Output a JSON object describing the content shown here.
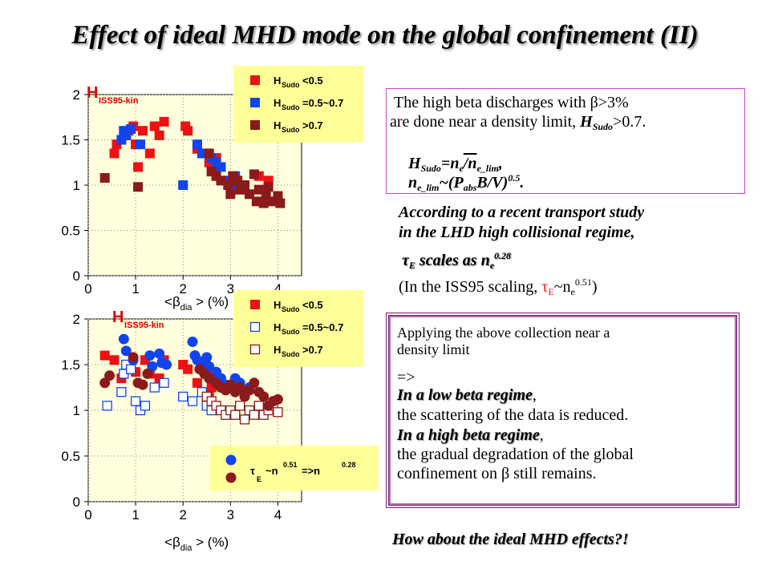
{
  "title": "Effect of ideal MHD mode on the global confinement (II)",
  "chart_data": [
    {
      "type": "scatter",
      "ylabel": "H",
      "ylabel_sub": "ISS95-kin",
      "xlabel_pre": "<",
      "xlabel_symbol": "β",
      "xlabel_sub": "dia",
      "xlabel_post": "> (%)",
      "xlim": [
        0,
        4.5
      ],
      "ylim": [
        0,
        2
      ],
      "xticks": [
        "0",
        "1",
        "2",
        "3",
        "4"
      ],
      "yticks": [
        "0",
        "0.5",
        "1",
        "1.5",
        "2"
      ],
      "legend": [
        {
          "label": "H",
          "sub": "Sudo",
          "cond": "<0.5",
          "color": "#ee1111",
          "marker": "square-filled"
        },
        {
          "label": "H",
          "sub": "Sudo",
          "cond": "=0.5~0.7",
          "color": "#1144ee",
          "marker": "square-filled"
        },
        {
          "label": "H",
          "sub": "Sudo",
          "cond": ">0.7",
          "color": "#8b1a1a",
          "marker": "square-filled"
        }
      ],
      "legend_bg": "#ffff99",
      "series": [
        {
          "name": "H_Sudo<0.5",
          "color": "#ee1111",
          "marker": "square-filled",
          "points": [
            [
              0.55,
              1.35
            ],
            [
              0.6,
              1.45
            ],
            [
              0.8,
              1.55
            ],
            [
              0.85,
              1.6
            ],
            [
              0.95,
              1.65
            ],
            [
              1.0,
              1.45
            ],
            [
              1.05,
              1.2
            ],
            [
              1.15,
              1.6
            ],
            [
              1.3,
              1.35
            ],
            [
              1.4,
              1.65
            ],
            [
              1.5,
              1.55
            ],
            [
              1.6,
              1.7
            ],
            [
              2.05,
              1.65
            ],
            [
              2.1,
              1.6
            ],
            [
              2.3,
              1.4
            ],
            [
              2.5,
              1.35
            ],
            [
              2.55,
              1.25
            ],
            [
              2.6,
              1.2
            ],
            [
              2.7,
              1.3
            ],
            [
              3.6,
              1.1
            ],
            [
              3.8,
              1.05
            ]
          ]
        },
        {
          "name": "H_Sudo=0.5~0.7",
          "color": "#1144ee",
          "marker": "square-filled",
          "points": [
            [
              0.7,
              1.5
            ],
            [
              0.75,
              1.6
            ],
            [
              0.8,
              1.55
            ],
            [
              0.9,
              1.62
            ],
            [
              1.1,
              1.45
            ],
            [
              2.0,
              1.0
            ],
            [
              2.3,
              1.45
            ],
            [
              2.4,
              1.35
            ],
            [
              2.6,
              1.3
            ],
            [
              2.7,
              1.25
            ],
            [
              2.8,
              1.2
            ],
            [
              2.9,
              1.05
            ],
            [
              3.0,
              1.0
            ],
            [
              3.1,
              1.1
            ],
            [
              3.2,
              0.95
            ]
          ]
        },
        {
          "name": "H_Sudo>0.7",
          "color": "#8b1a1a",
          "marker": "square-filled",
          "points": [
            [
              0.35,
              1.08
            ],
            [
              1.05,
              0.98
            ],
            [
              2.55,
              1.35
            ],
            [
              2.6,
              1.15
            ],
            [
              2.7,
              1.1
            ],
            [
              2.8,
              1.05
            ],
            [
              2.95,
              1.0
            ],
            [
              3.0,
              0.9
            ],
            [
              3.05,
              1.1
            ],
            [
              3.15,
              1.05
            ],
            [
              3.2,
              0.95
            ],
            [
              3.3,
              1.0
            ],
            [
              3.4,
              0.9
            ],
            [
              3.5,
              1.12
            ],
            [
              3.55,
              0.82
            ],
            [
              3.6,
              0.95
            ],
            [
              3.7,
              0.8
            ],
            [
              3.75,
              0.88
            ],
            [
              3.8,
              0.98
            ],
            [
              3.9,
              0.82
            ],
            [
              4.0,
              0.88
            ],
            [
              4.05,
              0.8
            ]
          ]
        }
      ]
    },
    {
      "type": "scatter",
      "ylabel": "H",
      "ylabel_sub": "ISS95-kin",
      "xlabel_pre": "<",
      "xlabel_symbol": "β",
      "xlabel_sub": "dia",
      "xlabel_post": "> (%)",
      "xlim": [
        0,
        4.5
      ],
      "ylim": [
        0,
        2
      ],
      "xticks": [
        "0",
        "1",
        "2",
        "3",
        "4"
      ],
      "yticks": [
        "0",
        "0.5",
        "1",
        "1.5",
        "2"
      ],
      "legend": [
        {
          "label": "H",
          "sub": "Sudo",
          "cond": "<0.5",
          "color": "#ee1111",
          "marker": "square-filled"
        },
        {
          "label": "H",
          "sub": "Sudo",
          "cond": "=0.5~0.7",
          "color": "#1144ee",
          "marker": "square-open"
        },
        {
          "label": "H",
          "sub": "Sudo",
          "cond": ">0.7",
          "color": "#8b1a1a",
          "marker": "square-open"
        }
      ],
      "legend_bg": "#ffff99",
      "legend2": {
        "text_pre": "τ",
        "text_sub": "E",
        "text_mid": "~n",
        "sup1": "0.51",
        "text_arrow": "=>n",
        "sup2": "0.28",
        "markers": [
          {
            "color": "#1144ee",
            "marker": "circle-filled"
          },
          {
            "color": "#8b1a1a",
            "marker": "circle-filled"
          }
        ],
        "bg": "#ffff99"
      },
      "series": [
        {
          "name": "H_Sudo<0.5",
          "color": "#ee1111",
          "marker": "square-filled",
          "points": [
            [
              0.35,
              1.6
            ],
            [
              0.55,
              1.55
            ],
            [
              0.7,
              1.35
            ],
            [
              0.8,
              1.45
            ],
            [
              0.9,
              1.5
            ],
            [
              1.0,
              1.42
            ],
            [
              1.2,
              1.55
            ],
            [
              1.3,
              1.4
            ],
            [
              1.5,
              1.35
            ],
            [
              1.6,
              1.55
            ],
            [
              2.0,
              1.5
            ],
            [
              2.1,
              1.45
            ],
            [
              2.3,
              1.3
            ],
            [
              2.5,
              1.4
            ],
            [
              2.55,
              1.2
            ],
            [
              2.6,
              1.25
            ],
            [
              2.65,
              1.35
            ]
          ]
        },
        {
          "name": "H_Sudo=0.5~0.7 (open)",
          "color": "#1144ee",
          "marker": "square-open",
          "points": [
            [
              0.4,
              1.05
            ],
            [
              0.7,
              1.2
            ],
            [
              0.75,
              1.4
            ],
            [
              0.8,
              1.5
            ],
            [
              0.9,
              1.45
            ],
            [
              1.0,
              1.1
            ],
            [
              1.1,
              1.0
            ],
            [
              1.2,
              1.05
            ],
            [
              1.4,
              1.25
            ],
            [
              1.6,
              1.3
            ],
            [
              2.0,
              1.15
            ],
            [
              2.2,
              1.1
            ],
            [
              2.4,
              1.2
            ],
            [
              2.5,
              1.05
            ],
            [
              2.6,
              1.0
            ]
          ]
        },
        {
          "name": "H_Sudo>0.7 (open)",
          "color": "#8b1a1a",
          "marker": "square-open",
          "points": [
            [
              2.5,
              1.15
            ],
            [
              2.6,
              1.1
            ],
            [
              2.7,
              1.05
            ],
            [
              2.8,
              1.0
            ],
            [
              2.9,
              0.95
            ],
            [
              3.0,
              1.0
            ],
            [
              3.1,
              0.95
            ],
            [
              3.2,
              1.05
            ],
            [
              3.3,
              0.9
            ],
            [
              3.4,
              1.0
            ],
            [
              3.5,
              0.95
            ],
            [
              3.6,
              1.05
            ],
            [
              3.7,
              0.95
            ],
            [
              3.8,
              1.0
            ],
            [
              3.9,
              1.05
            ],
            [
              4.0,
              0.98
            ]
          ]
        },
        {
          "name": "τE~n^0.51 (blue)",
          "color": "#1144ee",
          "marker": "circle-filled",
          "points": [
            [
              0.75,
              1.78
            ],
            [
              0.8,
              1.65
            ],
            [
              0.95,
              1.55
            ],
            [
              1.3,
              1.6
            ],
            [
              1.35,
              1.48
            ],
            [
              1.5,
              1.62
            ],
            [
              1.55,
              1.52
            ],
            [
              1.65,
              1.5
            ],
            [
              2.2,
              1.75
            ],
            [
              2.25,
              1.6
            ],
            [
              2.3,
              1.55
            ],
            [
              2.4,
              1.52
            ],
            [
              2.45,
              1.45
            ],
            [
              2.5,
              1.58
            ],
            [
              2.55,
              1.48
            ],
            [
              2.7,
              1.42
            ],
            [
              2.8,
              1.35
            ],
            [
              2.9,
              1.28
            ],
            [
              3.0,
              1.25
            ],
            [
              3.1,
              1.35
            ],
            [
              3.2,
              1.3
            ],
            [
              3.3,
              1.2
            ],
            [
              3.4,
              1.25
            ]
          ]
        },
        {
          "name": "τE~n^0.28 (brown)",
          "color": "#8b1a1a",
          "marker": "circle-filled",
          "points": [
            [
              0.35,
              1.3
            ],
            [
              0.45,
              1.38
            ],
            [
              0.95,
              1.58
            ],
            [
              1.05,
              1.3
            ],
            [
              1.15,
              1.28
            ],
            [
              1.25,
              1.4
            ],
            [
              2.35,
              1.45
            ],
            [
              2.45,
              1.4
            ],
            [
              2.55,
              1.35
            ],
            [
              2.7,
              1.3
            ],
            [
              2.8,
              1.25
            ],
            [
              2.9,
              1.22
            ],
            [
              3.0,
              1.28
            ],
            [
              3.1,
              1.2
            ],
            [
              3.2,
              1.25
            ],
            [
              3.3,
              1.15
            ],
            [
              3.4,
              1.22
            ],
            [
              3.5,
              1.3
            ],
            [
              3.6,
              1.2
            ],
            [
              3.7,
              1.15
            ],
            [
              3.8,
              1.05
            ],
            [
              3.9,
              1.1
            ],
            [
              4.0,
              1.12
            ]
          ]
        }
      ]
    }
  ],
  "box1": {
    "line1_a": "The high beta discharges with ",
    "line1_beta": "β",
    "line1_b": ">3%",
    "line2_a": "are done near a density limit, ",
    "line2_H": "H",
    "line2_sub": "Sudo",
    "line2_b": ">0.7.",
    "eq1_H": "H",
    "eq1_Hsub": "Sudo",
    "eq1_mid": "=n",
    "eq1_nsub": "e",
    "eq1_slash": "/n",
    "eq1_limsub": "e_lim",
    "eq1_end": ",",
    "eq2_n": "n",
    "eq2_nsub": "e_lim",
    "eq2_mid": "~(P",
    "eq2_psub": "abs",
    "eq2_b": "B/V)",
    "eq2_sup": "0.5",
    "eq2_end": "."
  },
  "study": {
    "line1": "According to a recent transport study",
    "line2": "in the LHD high collisional regime,",
    "tau": "τ",
    "tau_sub": "E",
    "scales": " scales as n",
    "scales_sub": "e",
    "scales_sup": "0.28",
    "iss_a": "(In the ISS95 scaling, ",
    "iss_tau": "τ",
    "iss_tausub": "E",
    "iss_n": "~n",
    "iss_nsub": "e",
    "iss_sup": "0.51",
    "iss_end": ")"
  },
  "box2": {
    "line1": "Applying the above collection near a",
    "line2": "density limit",
    "arrow": "=>",
    "low_heading": "In a low beta regime",
    "low_comma": ",",
    "low_text": "the scattering of the data is reduced.",
    "high_heading": "In a high beta regime",
    "high_comma": ",",
    "high_text1": "the gradual degradation of the global",
    "high_text2_a": "confinement on ",
    "high_text2_beta": "β",
    "high_text2_b": " still remains."
  },
  "footer": "How about the ideal MHD effects?!"
}
